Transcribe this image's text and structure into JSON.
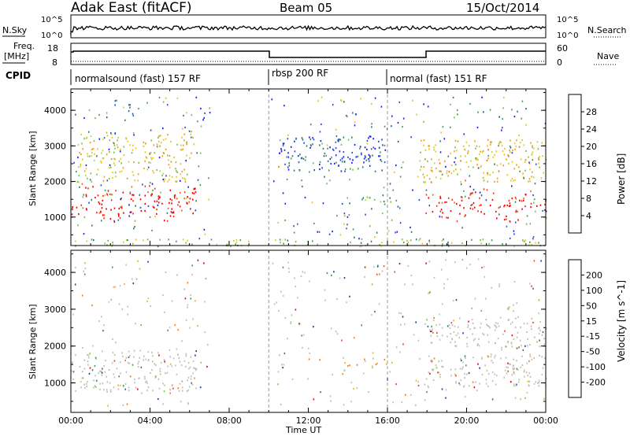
{
  "header": {
    "title": "Adak East (fitACF)",
    "beam": "Beam 05",
    "date": "15/Oct/2014"
  },
  "nsky_panel": {
    "left_label": "N.Sky",
    "right_label": "N.Search",
    "left_ticks": [
      "10^5",
      "10^0"
    ],
    "right_ticks": [
      "10^5",
      "10^0"
    ]
  },
  "freq_panel": {
    "left_label_line1": "Freq.",
    "left_label_line2": "[MHz]",
    "left_ticks": [
      "18",
      "8"
    ],
    "right_ticks": [
      "60",
      "0"
    ],
    "right_label": "Nave"
  },
  "cpid_panel": {
    "label": "CPID",
    "segments": [
      {
        "label": "normalsound (fast) 157 RF",
        "start_hour": 0
      },
      {
        "label": "rbsp 200 RF",
        "start_hour": 10
      },
      {
        "label": "normal (fast) 151 RF",
        "start_hour": 16
      }
    ]
  },
  "chart_data": [
    {
      "type": "heatmap",
      "title": "",
      "xlabel": "",
      "ylabel": "Slant Range [km]",
      "xlim": [
        0,
        24
      ],
      "ylim": [
        200,
        4600
      ],
      "yticks": [
        1000,
        2000,
        3000,
        4000
      ],
      "colorbar_label": "Power [dB]",
      "colorbar_ticks": [
        "4",
        "8",
        "12",
        "16",
        "20",
        "24",
        "28"
      ],
      "colorbar_colors": [
        "#1a1aff",
        "#2a4fd0",
        "#2f7a78",
        "#4f9b52",
        "#7fbf4a",
        "#c8d238",
        "#f2c21e",
        "#f59c1c",
        "#f06a1c",
        "#e83a1c",
        "#ff0000"
      ],
      "regions": [
        {
          "desc": "main band",
          "x": [
            0.0,
            6.3
          ],
          "y": [
            1000,
            1900
          ],
          "level": 0.95
        },
        {
          "desc": "upper scatter",
          "x": [
            0.3,
            6.2
          ],
          "y": [
            2000,
            3400
          ],
          "level": 0.55
        },
        {
          "desc": "E region patch",
          "x": [
            13.8,
            16.2
          ],
          "y": [
            1400,
            1650
          ],
          "level": 0.35
        },
        {
          "desc": "F scatter",
          "x": [
            10.5,
            16.0
          ],
          "y": [
            2300,
            3300
          ],
          "level": 0.15
        },
        {
          "desc": "evening band",
          "x": [
            17.9,
            24.0
          ],
          "y": [
            1000,
            1700
          ],
          "level": 0.95
        },
        {
          "desc": "evening upper",
          "x": [
            17.5,
            24.0
          ],
          "y": [
            2000,
            3200
          ],
          "level": 0.6
        },
        {
          "desc": "ground clutter",
          "x": [
            0.0,
            24.0
          ],
          "y": [
            200,
            400
          ],
          "level": 0.4
        }
      ]
    },
    {
      "type": "heatmap",
      "title": "",
      "xlabel": "Time UT",
      "ylabel": "Slant Range [km]",
      "xlim": [
        0,
        24
      ],
      "ylim": [
        200,
        4600
      ],
      "yticks": [
        1000,
        2000,
        3000,
        4000
      ],
      "xticks": [
        "00:00",
        "04:00",
        "08:00",
        "12:00",
        "16:00",
        "20:00",
        "00:00"
      ],
      "colorbar_label": "Velocity [m s^-1]",
      "colorbar_ticks": [
        "200",
        "100",
        "50",
        "15",
        "-15",
        "-50",
        "-100",
        "-200"
      ],
      "colorbar_colors": [
        "#1f3fb0",
        "#2a7a7a",
        "#43a043",
        "#7cd04a",
        "#c0c0b8",
        "#f5b020",
        "#f57e1a",
        "#f04a1a",
        "#e01010"
      ],
      "regions": [
        {
          "desc": "ground scatter",
          "x": [
            0.0,
            6.3
          ],
          "y": [
            800,
            1900
          ],
          "level": "ground"
        },
        {
          "desc": "E region patch",
          "x": [
            13.8,
            16.2
          ],
          "y": [
            1450,
            1700
          ],
          "level": "-80"
        },
        {
          "desc": "evening ground scatter",
          "x": [
            17.9,
            24.0
          ],
          "y": [
            900,
            1800
          ],
          "level": "ground"
        },
        {
          "desc": "evening ground upper",
          "x": [
            18.0,
            24.0
          ],
          "y": [
            2000,
            2800
          ],
          "level": "ground"
        }
      ]
    }
  ]
}
